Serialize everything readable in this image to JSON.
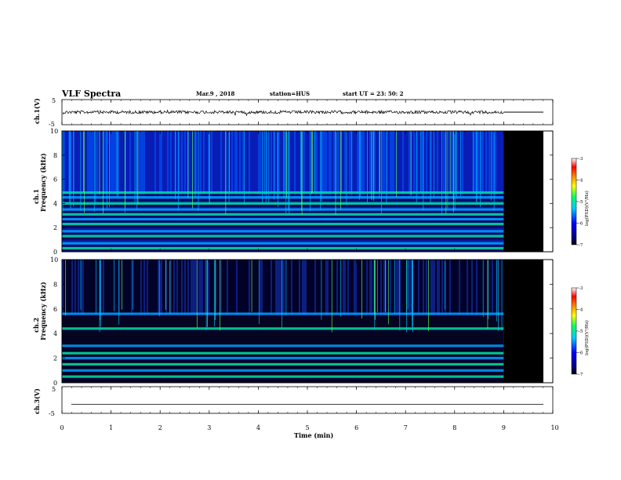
{
  "header": {
    "title": "VLF Spectra",
    "date": "Mar.9 , 2018",
    "station": "station=HUS",
    "start": "start UT = 23: 50: 2"
  },
  "colors": {
    "background": "#000000",
    "trace": "#000000",
    "colormap": [
      "#000000",
      "#00007f",
      "#0000ff",
      "#00ccff",
      "#00ff66",
      "#ffff00",
      "#ff7f00",
      "#ff0000",
      "#ffffff"
    ]
  },
  "chart_data": [
    {
      "type": "line",
      "ylabel": "ch.1(V)",
      "ylim": [
        -5,
        5
      ],
      "yticks": [
        "5",
        "-5"
      ],
      "xlim": [
        0,
        10
      ],
      "level": 0,
      "data_end_min": 9,
      "note_trace": "noisy waveform around 0 V"
    },
    {
      "type": "heatmap",
      "ylabel": "ch.1",
      "ylabel2": "Frequency (kHz)",
      "ylim": [
        0,
        10
      ],
      "yticks": [
        "0",
        "2",
        "4",
        "6",
        "8",
        "10"
      ],
      "xlim": [
        0,
        10
      ],
      "data_end_min": 9,
      "colorbar": {
        "label": "log(PSD)(V²/Hz)",
        "ticks": [
          "-3",
          "-4",
          "-5",
          "-6",
          "-7"
        ],
        "range": [
          -7,
          -3
        ]
      },
      "bands_khz": [
        0.3,
        0.7,
        1.3,
        1.7,
        2.3,
        2.7,
        3.1,
        3.5,
        4.0,
        4.5,
        4.9
      ]
    },
    {
      "type": "heatmap",
      "ylabel": "ch.2",
      "ylabel2": "Frequency (kHz)",
      "ylim": [
        0,
        10
      ],
      "yticks": [
        "0",
        "2",
        "4",
        "6",
        "8",
        "10"
      ],
      "xlim": [
        0,
        10
      ],
      "data_end_min": 9,
      "colorbar": {
        "label": "log(PSD)(V²/Hz)",
        "ticks": [
          "-3",
          "-4",
          "-5",
          "-6",
          "-7"
        ],
        "range": [
          -7,
          -3
        ]
      },
      "bands_khz": [
        0.5,
        1.0,
        1.5,
        2.0,
        2.4,
        3.0,
        4.4,
        5.6
      ]
    },
    {
      "type": "line",
      "ylabel": "ch.3(V)",
      "ylim": [
        -5,
        5
      ],
      "yticks": [
        "5",
        "-5"
      ],
      "xlim": [
        0,
        10
      ],
      "level": -1,
      "xlabel": "Time (min)",
      "xticks": [
        "0",
        "1",
        "2",
        "3",
        "4",
        "5",
        "6",
        "7",
        "8",
        "9",
        "10"
      ]
    }
  ]
}
